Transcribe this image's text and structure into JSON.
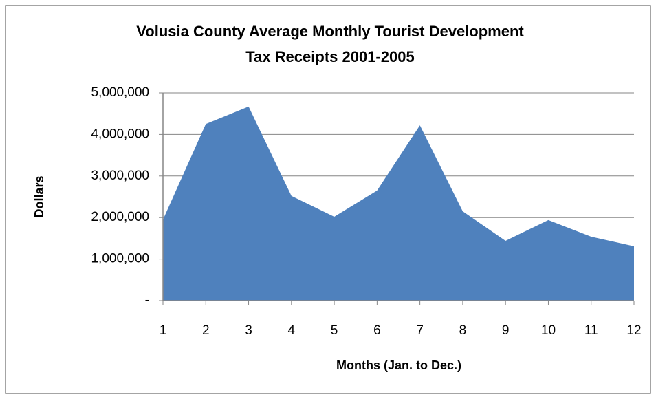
{
  "chart_data": {
    "type": "area",
    "title": [
      "Volusia County Average Monthly Tourist Development",
      "Tax Receipts 2001-2005"
    ],
    "x_label": "Months (Jan. to Dec.)",
    "y_label": "Dollars",
    "categories": [
      "1",
      "2",
      "3",
      "4",
      "5",
      "6",
      "7",
      "8",
      "9",
      "10",
      "11",
      "12"
    ],
    "values": [
      1950000,
      4250000,
      4670000,
      2520000,
      2020000,
      2650000,
      4220000,
      2150000,
      1440000,
      1940000,
      1540000,
      1310000
    ],
    "color": "#4f81bd",
    "ylim": [
      0,
      5000000
    ],
    "yticks": [
      {
        "value": 0,
        "label": "-"
      },
      {
        "value": 1000000,
        "label": "1,000,000"
      },
      {
        "value": 2000000,
        "label": "2,000,000"
      },
      {
        "value": 3000000,
        "label": "3,000,000"
      },
      {
        "value": 4000000,
        "label": "4,000,000"
      },
      {
        "value": 5000000,
        "label": "5,000,000"
      }
    ],
    "grid": true
  }
}
